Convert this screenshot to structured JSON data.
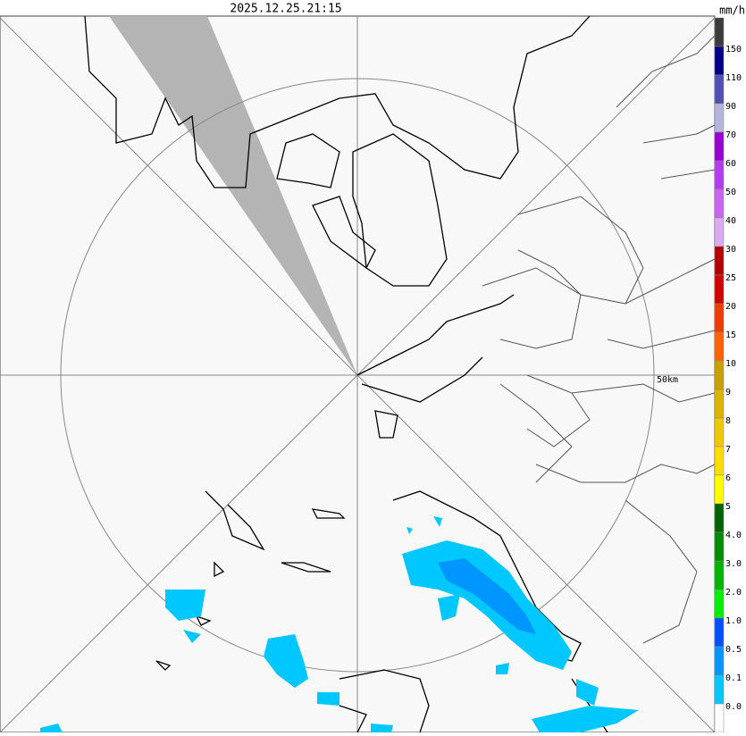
{
  "header": {
    "timestamp": "2025.12.25.21:15"
  },
  "map": {
    "range_label": "50km"
  },
  "legend": {
    "unit": "mm/h",
    "labels": [
      "150",
      "110",
      "90",
      "70",
      "60",
      "50",
      "40",
      "30",
      "25",
      "20",
      "15",
      "10",
      "9",
      "8",
      "7",
      "6",
      "5",
      "4.0",
      "3.0",
      "2.0",
      "1.0",
      "0.5",
      "0.1",
      "0.0"
    ],
    "colors": [
      "#3c3c3c",
      "#00008c",
      "#5050b4",
      "#b4b4dc",
      "#9600d2",
      "#b43cf0",
      "#c864f0",
      "#dcaaf0",
      "#b40000",
      "#d20000",
      "#f03c00",
      "#ff6400",
      "#c8a000",
      "#dcb400",
      "#f0c800",
      "#ffdc00",
      "#ffff00",
      "#006400",
      "#008c00",
      "#00b400",
      "#00f000",
      "#0050ff",
      "#0096ff",
      "#00c8ff",
      "#ffffff"
    ]
  }
}
